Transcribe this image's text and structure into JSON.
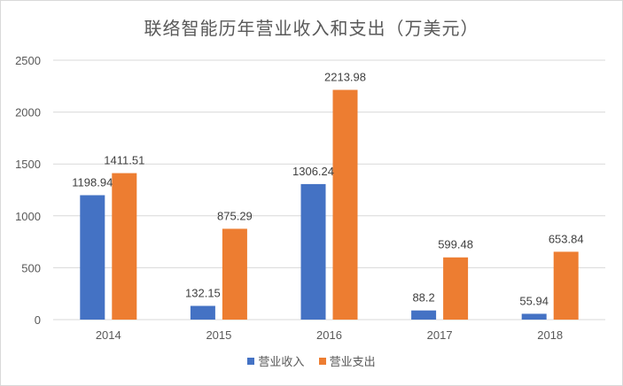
{
  "chart_data": {
    "type": "bar",
    "title": "联络智能历年营业收入和支出（万美元）",
    "categories": [
      "2014",
      "2015",
      "2016",
      "2017",
      "2018"
    ],
    "series": [
      {
        "name": "营业收入",
        "color": "#4472c4",
        "values": [
          1198.94,
          132.15,
          1306.24,
          88.2,
          55.94
        ]
      },
      {
        "name": "营业支出",
        "color": "#ed7d31",
        "values": [
          1411.51,
          875.29,
          2213.98,
          599.48,
          653.84
        ]
      }
    ],
    "ylim": [
      0,
      2500
    ],
    "yticks": [
      "0",
      "500",
      "1000",
      "1500",
      "2000",
      "2500"
    ],
    "xlabel": "",
    "ylabel": "",
    "grid": true,
    "legend": "bottom"
  }
}
